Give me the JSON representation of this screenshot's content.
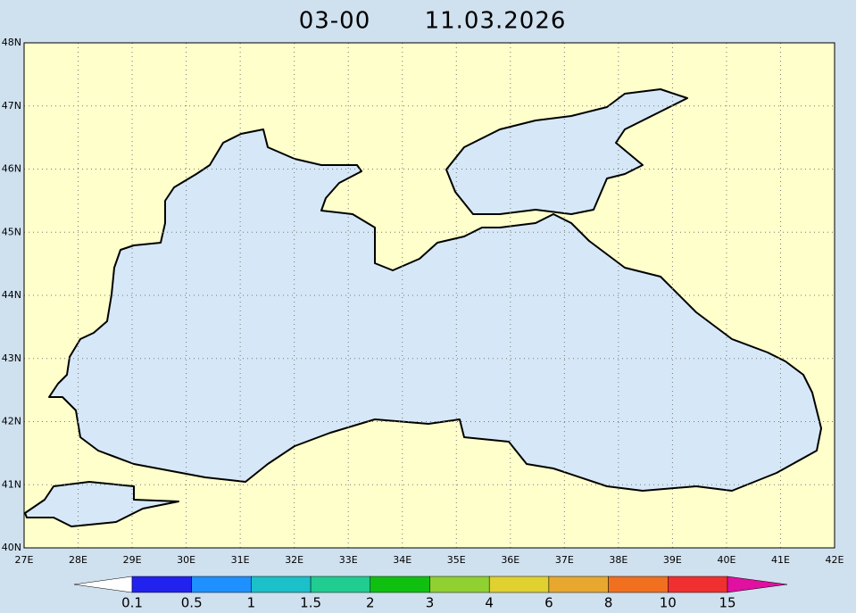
{
  "header": {
    "run": "03-00",
    "date": "11.03.2026"
  },
  "map": {
    "lon_ticks": [
      {
        "value": 27,
        "label": "27E"
      },
      {
        "value": 28,
        "label": "28E"
      },
      {
        "value": 29,
        "label": "29E"
      },
      {
        "value": 30,
        "label": "30E"
      },
      {
        "value": 31,
        "label": "31E"
      },
      {
        "value": 32,
        "label": "32E"
      },
      {
        "value": 33,
        "label": "33E"
      },
      {
        "value": 34,
        "label": "34E"
      },
      {
        "value": 35,
        "label": "35E"
      },
      {
        "value": 36,
        "label": "36E"
      },
      {
        "value": 37,
        "label": "37E"
      },
      {
        "value": 38,
        "label": "38E"
      },
      {
        "value": 39,
        "label": "39E"
      },
      {
        "value": 40,
        "label": "40E"
      },
      {
        "value": 41,
        "label": "41E"
      },
      {
        "value": 42,
        "label": "42E"
      }
    ],
    "lat_ticks": [
      {
        "value": 40,
        "label": "40N"
      },
      {
        "value": 41,
        "label": "41N"
      },
      {
        "value": 42,
        "label": "42N"
      },
      {
        "value": 43,
        "label": "43N"
      },
      {
        "value": 44,
        "label": "44N"
      },
      {
        "value": 45,
        "label": "45N"
      },
      {
        "value": 46,
        "label": "46N"
      },
      {
        "value": 47,
        "label": "47N"
      },
      {
        "value": 48,
        "label": "48N"
      }
    ],
    "xlim": [
      27,
      42
    ],
    "ylim": [
      40,
      48
    ]
  },
  "colorbar": {
    "labels": [
      "0.1",
      "0.5",
      "1",
      "1.5",
      "2",
      "3",
      "4",
      "6",
      "8",
      "10",
      "15"
    ],
    "colors": [
      "#ffffff",
      "#2222ee",
      "#1e90ff",
      "#1cc0c8",
      "#20cc90",
      "#10c010",
      "#90d030",
      "#e0d030",
      "#e8a830",
      "#f07020",
      "#f03030",
      "#e010a0"
    ]
  }
}
